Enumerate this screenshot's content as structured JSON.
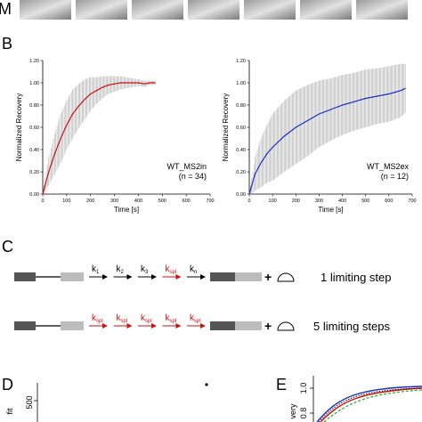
{
  "panel_a": {
    "label_fragment": "M"
  },
  "panel_labels": {
    "b": "B",
    "c": "C",
    "d": "D",
    "e": "E"
  },
  "chart_data": [
    {
      "type": "line",
      "panel": "B-left",
      "xlabel": "Time [s]",
      "ylabel": "Normalized Recovery",
      "xlim": [
        0,
        700
      ],
      "ylim": [
        0,
        1.2
      ],
      "xticks": [
        "0",
        "100",
        "200",
        "300",
        "400",
        "500",
        "600",
        "700"
      ],
      "yticks": [
        "0.00",
        "0.20",
        "0.40",
        "0.60",
        "0.80",
        "1.00",
        "1.20"
      ],
      "annotation_line1": "WT_MS2in",
      "annotation_line2": "(n = 34)",
      "line_color": "#cc1111",
      "errorbar_color": "#b0b0b0",
      "series": [
        {
          "x": [
            0,
            25,
            50,
            75,
            100,
            125,
            150,
            175,
            200,
            225,
            250,
            275,
            300,
            325,
            350,
            375,
            400,
            425,
            450,
            470
          ],
          "y": [
            0.0,
            0.2,
            0.36,
            0.5,
            0.62,
            0.72,
            0.79,
            0.85,
            0.9,
            0.93,
            0.96,
            0.98,
            0.99,
            1.0,
            1.0,
            1.0,
            1.0,
            0.99,
            1.0,
            1.0
          ],
          "err": [
            0.02,
            0.12,
            0.18,
            0.22,
            0.22,
            0.22,
            0.2,
            0.18,
            0.15,
            0.12,
            0.1,
            0.08,
            0.07,
            0.06,
            0.05,
            0.04,
            0.03,
            0.03,
            0.02,
            0.02
          ]
        }
      ]
    },
    {
      "type": "line",
      "panel": "B-right",
      "xlabel": "Time [s]",
      "ylabel": "Normalized Recovery",
      "xlim": [
        0,
        700
      ],
      "ylim": [
        0,
        1.2
      ],
      "xticks": [
        "0",
        "100",
        "200",
        "300",
        "400",
        "500",
        "600",
        "700"
      ],
      "yticks": [
        "0.00",
        "0.20",
        "0.40",
        "0.60",
        "0.80",
        "1.00",
        "1.20"
      ],
      "annotation_line1": "WT_MS2ex",
      "annotation_line2": "(n = 12)",
      "line_color": "#1a2fc2",
      "errorbar_color": "#b0b0b0",
      "series": [
        {
          "x": [
            0,
            25,
            50,
            75,
            100,
            150,
            200,
            250,
            300,
            350,
            400,
            450,
            500,
            550,
            600,
            650,
            670
          ],
          "y": [
            0.0,
            0.18,
            0.28,
            0.36,
            0.42,
            0.52,
            0.6,
            0.66,
            0.72,
            0.76,
            0.8,
            0.83,
            0.86,
            0.88,
            0.9,
            0.93,
            0.95
          ],
          "err": [
            0.02,
            0.15,
            0.22,
            0.26,
            0.3,
            0.32,
            0.33,
            0.32,
            0.3,
            0.28,
            0.27,
            0.26,
            0.26,
            0.25,
            0.25,
            0.24,
            0.22
          ]
        }
      ]
    }
  ],
  "panel_c": {
    "row1": {
      "rates": [
        "1",
        "2",
        "3",
        "spl",
        "n"
      ],
      "label": "1 limiting step"
    },
    "row2": {
      "rates": [
        "spl",
        "spl",
        "spl",
        "spl",
        "spl"
      ],
      "label": "5 limiting steps"
    },
    "k_letter": "k",
    "arrow_black": "#000000",
    "arrow_red": "#cc1111"
  },
  "panel_d": {
    "ytick": "500",
    "ylabel_fragment": "fit"
  },
  "panel_e": {
    "yticks": [
      "1.0",
      "0.8"
    ],
    "ylabel_fragment": "very"
  }
}
